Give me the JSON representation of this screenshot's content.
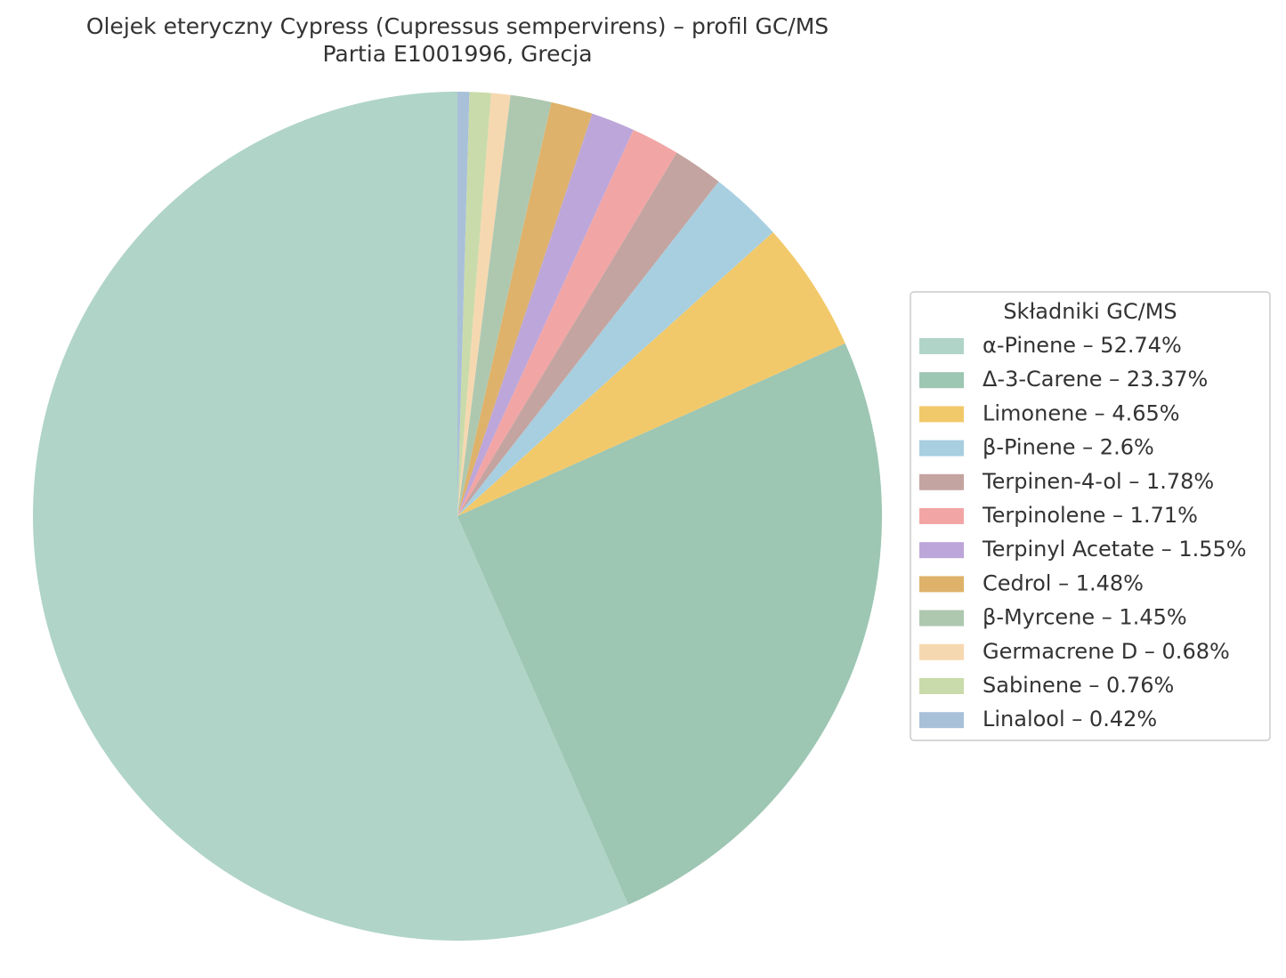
{
  "chart_data": {
    "type": "pie",
    "title": "Olejek eteryczny Cypress (Cupressus sempervirens) – profil GC/MS",
    "subtitle": "Partia E1001996, Grecja",
    "legend_title": "Składniki GC/MS",
    "legend": "right",
    "categories": [
      "α-Pinene – 52.74%",
      "Δ-3-Carene – 23.37%",
      "Limonene – 4.65%",
      "β-Pinene – 2.6%",
      "Terpinen-4-ol – 1.78%",
      "Terpinolene – 1.71%",
      "Terpinyl Acetate – 1.55%",
      "Cedrol – 1.48%",
      "β-Myrcene – 1.45%",
      "Germacrene D – 0.68%",
      "Sabinene – 0.76%",
      "Linalool – 0.42%"
    ],
    "values": [
      52.74,
      23.37,
      4.65,
      2.6,
      1.78,
      1.71,
      1.55,
      1.48,
      1.45,
      0.68,
      0.76,
      0.42
    ],
    "colors": [
      "#b0d4c8",
      "#9dc6b3",
      "#f2c96a",
      "#a8cfe0",
      "#c4a4a0",
      "#f2a5a5",
      "#bda6d9",
      "#deb26a",
      "#aec8b0",
      "#f6d8b0",
      "#c9dbaa",
      "#a9c0d9"
    ]
  }
}
